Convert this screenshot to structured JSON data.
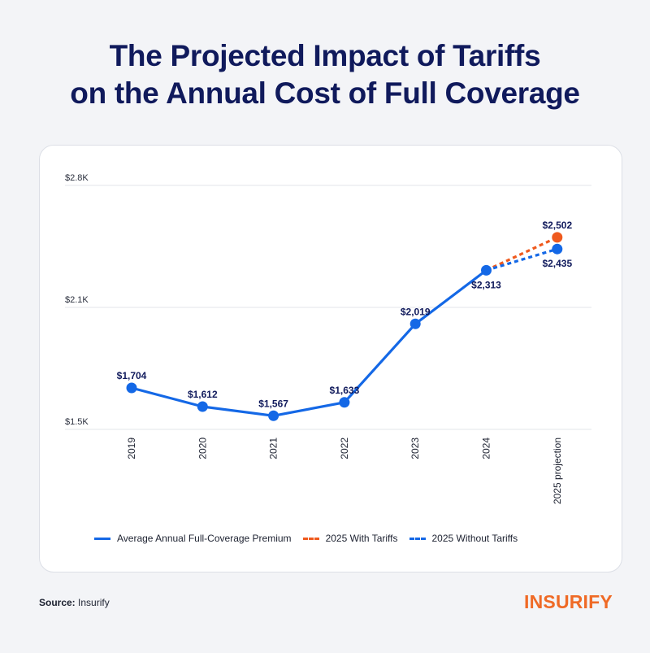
{
  "title_line1": "The Projected Impact of Tariffs",
  "title_line2": "on the Annual Cost of Full Coverage",
  "chart_data": {
    "type": "line",
    "categories": [
      "2019",
      "2020",
      "2021",
      "2022",
      "2023",
      "2024",
      "2025 projection"
    ],
    "y_ticks": [
      {
        "value": 1500,
        "label": "$1.5K"
      },
      {
        "value": 2100,
        "label": "$2.1K"
      },
      {
        "value": 2800,
        "label": "$2.8K"
      }
    ],
    "ylim": [
      1500,
      2800
    ],
    "grid": true,
    "legend_position": "bottom",
    "series": [
      {
        "name": "Average Annual Full-Coverage Premium",
        "color": "#1468e6",
        "style": "solid",
        "points": [
          {
            "x": "2019",
            "y": 1704,
            "label": "$1,704"
          },
          {
            "x": "2020",
            "y": 1612,
            "label": "$1,612"
          },
          {
            "x": "2021",
            "y": 1567,
            "label": "$1,567"
          },
          {
            "x": "2022",
            "y": 1633,
            "label": "$1,633"
          },
          {
            "x": "2023",
            "y": 2019,
            "label": "$2,019"
          },
          {
            "x": "2024",
            "y": 2313,
            "label": "$2,313"
          }
        ]
      },
      {
        "name": "2025 With Tariffs",
        "color": "#ef5a1e",
        "style": "dashed",
        "points": [
          {
            "x": "2024",
            "y": 2313,
            "label": ""
          },
          {
            "x": "2025 projection",
            "y": 2502,
            "label": "$2,502"
          }
        ]
      },
      {
        "name": "2025 Without Tariffs",
        "color": "#1468e6",
        "style": "dashed",
        "points": [
          {
            "x": "2024",
            "y": 2313,
            "label": ""
          },
          {
            "x": "2025 projection",
            "y": 2435,
            "label": "$2,435"
          }
        ]
      }
    ]
  },
  "legend": [
    {
      "label": "Average Annual Full-Coverage Premium",
      "color": "#1468e6",
      "style": "solid"
    },
    {
      "label": "2025 With Tariffs",
      "color": "#ef5a1e",
      "style": "dashed"
    },
    {
      "label": "2025 Without Tariffs",
      "color": "#1468e6",
      "style": "dashed"
    }
  ],
  "source_label": "Source:",
  "source_value": "Insurify",
  "logo_text": "INSURIFY",
  "colors": {
    "title": "#101a5c",
    "label": "#101a5c",
    "primary_blue": "#1468e6",
    "tariff_orange": "#ef5a1e",
    "logo_orange": "#ef6a26"
  }
}
